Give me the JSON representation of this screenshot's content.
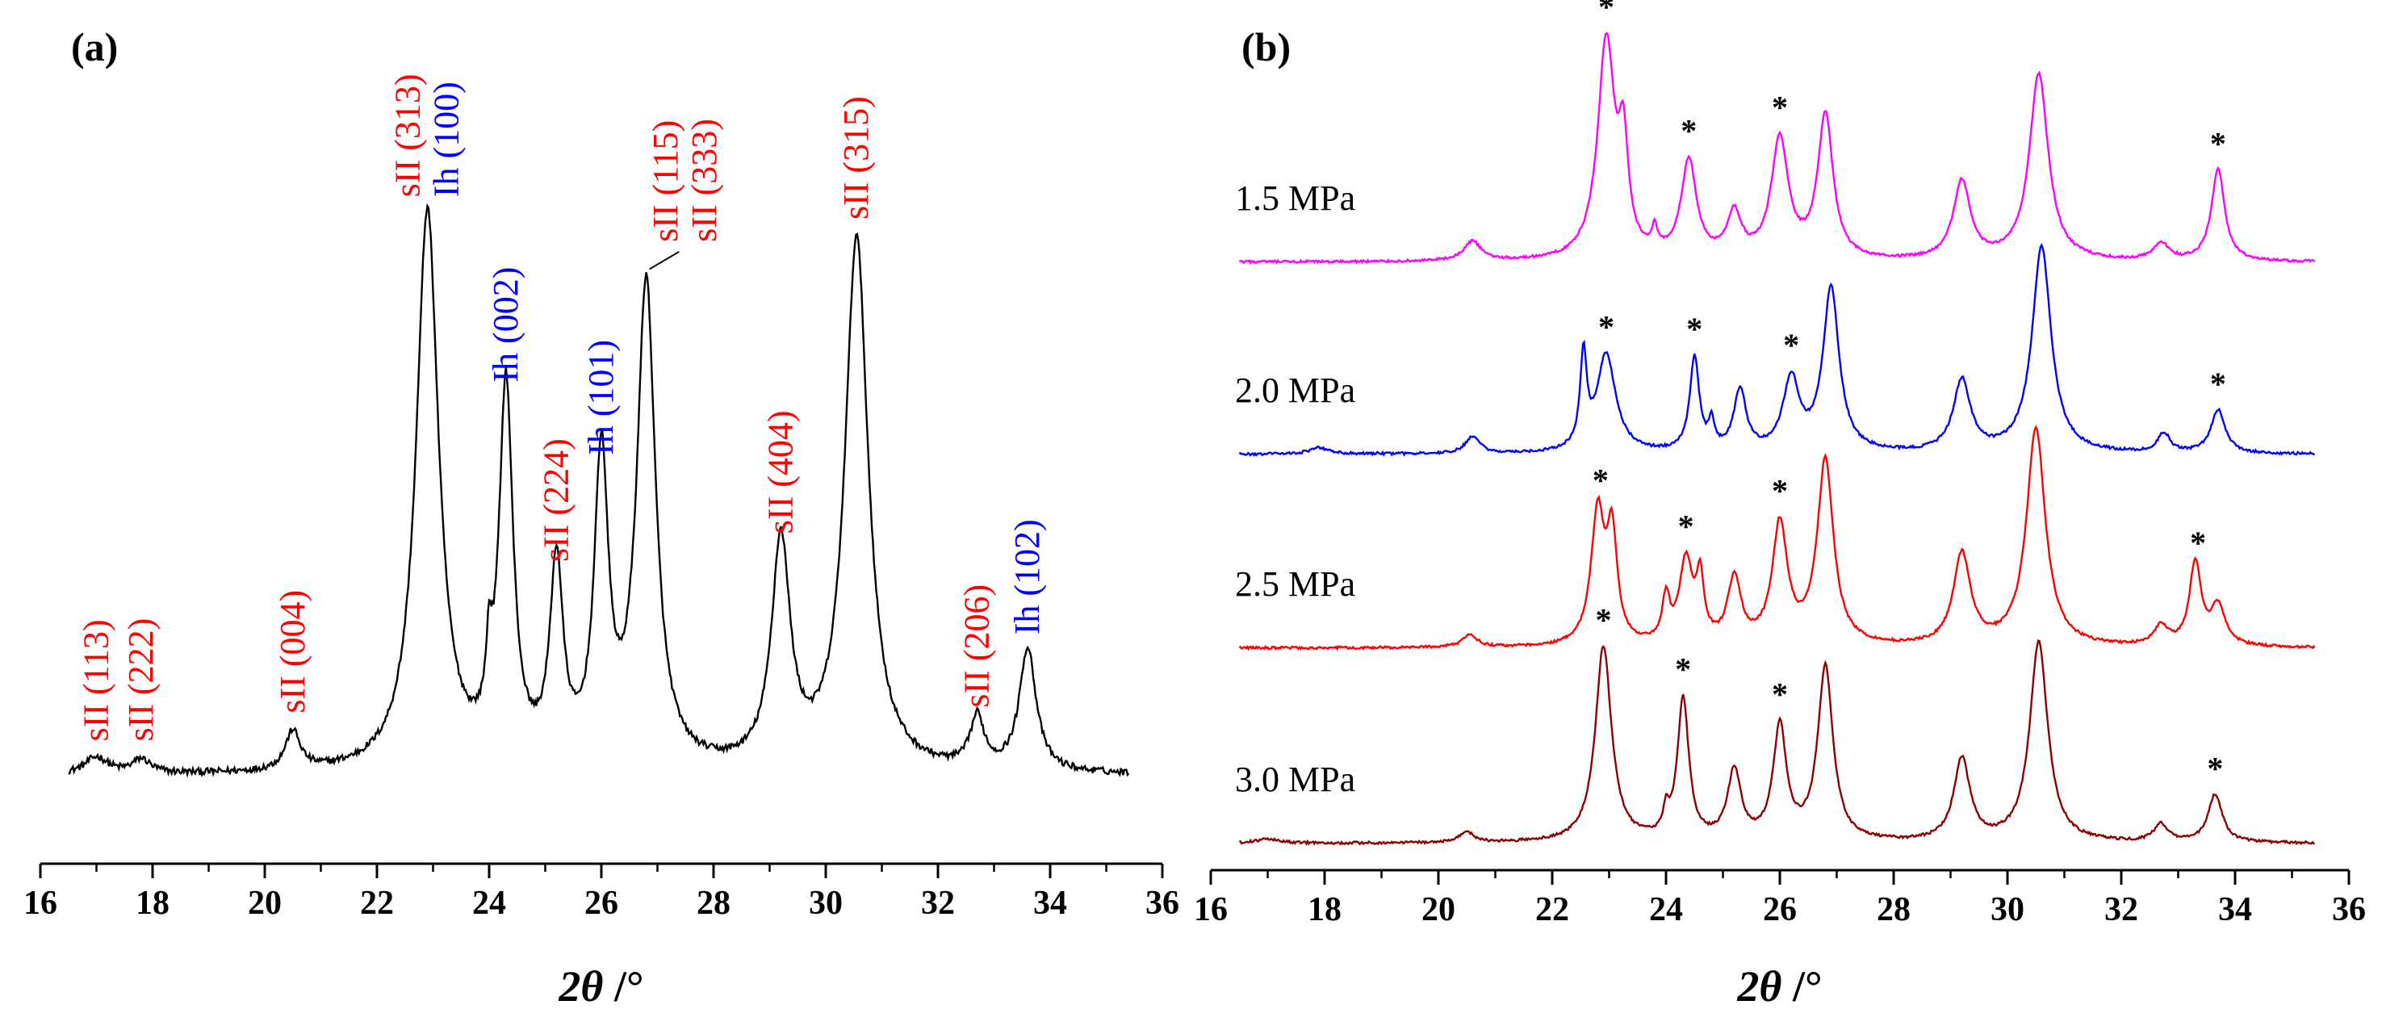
{
  "chart_data": [
    {
      "type": "line",
      "panel_label": "(a)",
      "title": "",
      "xlabel": "2θ /°",
      "xlabel_parts": {
        "symbol": "2θ",
        "unit": " /°"
      },
      "ylabel": "",
      "xlim": [
        16,
        36
      ],
      "ylim": [
        0,
        1.1
      ],
      "xticks": [
        16,
        18,
        20,
        22,
        24,
        26,
        28,
        30,
        32,
        34,
        36
      ],
      "baseline": 0.02,
      "peaks": [
        {
          "x": 17.0,
          "h": 0.03,
          "w": 0.25
        },
        {
          "x": 17.8,
          "h": 0.025,
          "w": 0.2
        },
        {
          "x": 20.5,
          "h": 0.07,
          "w": 0.16
        },
        {
          "x": 22.9,
          "h": 1.0,
          "w": 0.24
        },
        {
          "x": 24.0,
          "h": 0.12,
          "w": 0.06
        },
        {
          "x": 24.3,
          "h": 0.67,
          "w": 0.15
        },
        {
          "x": 25.2,
          "h": 0.35,
          "w": 0.14
        },
        {
          "x": 26.0,
          "h": 0.54,
          "w": 0.15
        },
        {
          "x": 26.8,
          "h": 0.86,
          "w": 0.2
        },
        {
          "x": 29.2,
          "h": 0.4,
          "w": 0.2
        },
        {
          "x": 30.55,
          "h": 0.95,
          "w": 0.25
        },
        {
          "x": 32.7,
          "h": 0.09,
          "w": 0.15
        },
        {
          "x": 33.6,
          "h": 0.22,
          "w": 0.18
        }
      ],
      "annotations": [
        {
          "lines": [
            {
              "text": "sII (113)",
              "color": "#ff0000"
            }
          ],
          "x": 17.0,
          "y": 0.07
        },
        {
          "lines": [
            {
              "text": "sII (222)",
              "color": "#ff0000"
            }
          ],
          "x": 17.8,
          "y": 0.07
        },
        {
          "lines": [
            {
              "text": "sII (004)",
              "color": "#ff0000"
            }
          ],
          "x": 20.5,
          "y": 0.12
        },
        {
          "lines": [
            {
              "text": "sII (313)",
              "color": "#ff0000"
            },
            {
              "text": "Ih (100)",
              "color": "#0000ff"
            }
          ],
          "x": 22.9,
          "y": 1.04
        },
        {
          "lines": [
            {
              "text": "Ih (002)",
              "color": "#0000ff"
            }
          ],
          "x": 24.3,
          "y": 0.71
        },
        {
          "lines": [
            {
              "text": "sII (224)",
              "color": "#ff0000"
            }
          ],
          "x": 25.2,
          "y": 0.39
        },
        {
          "lines": [
            {
              "text": "Ih (101)",
              "color": "#0000ff"
            }
          ],
          "x": 26.0,
          "y": 0.58
        },
        {
          "lines": [
            {
              "text": "sII (115)",
              "color": "#ff0000"
            },
            {
              "text": "sII (333)",
              "color": "#ff0000"
            }
          ],
          "x": 27.5,
          "y": 0.96,
          "leader_to_x": 26.8
        },
        {
          "lines": [
            {
              "text": "sII (404)",
              "color": "#ff0000"
            }
          ],
          "x": 29.2,
          "y": 0.44
        },
        {
          "lines": [
            {
              "text": "sII (315)",
              "color": "#ff0000"
            }
          ],
          "x": 30.55,
          "y": 1.0
        },
        {
          "lines": [
            {
              "text": "sII (206)",
              "color": "#ff0000"
            }
          ],
          "x": 32.7,
          "y": 0.13
        },
        {
          "lines": [
            {
              "text": "Ih (102)",
              "color": "#0000ff"
            }
          ],
          "x": 33.6,
          "y": 0.26
        }
      ]
    },
    {
      "type": "line",
      "panel_label": "(b)",
      "title": "",
      "xlabel": "2θ /°",
      "xlabel_parts": {
        "symbol": "2θ",
        "unit": " /°"
      },
      "ylabel": "",
      "xlim": [
        16,
        36
      ],
      "xticks": [
        16,
        18,
        20,
        22,
        24,
        26,
        28,
        30,
        32,
        34,
        36
      ],
      "series_height": 1.0,
      "series": [
        {
          "name": "1.5 MPa",
          "color": "#ff00ff",
          "baseline": 0.02,
          "peaks": [
            {
              "x": 20.6,
              "h": 0.09,
              "w": 0.18
            },
            {
              "x": 22.95,
              "h": 1.0,
              "w": 0.18
            },
            {
              "x": 23.25,
              "h": 0.45,
              "w": 0.1
            },
            {
              "x": 23.8,
              "h": 0.1,
              "w": 0.06
            },
            {
              "x": 24.4,
              "h": 0.45,
              "w": 0.16
            },
            {
              "x": 25.2,
              "h": 0.2,
              "w": 0.15
            },
            {
              "x": 26.0,
              "h": 0.55,
              "w": 0.18
            },
            {
              "x": 26.8,
              "h": 0.66,
              "w": 0.16
            },
            {
              "x": 29.2,
              "h": 0.36,
              "w": 0.18
            },
            {
              "x": 30.55,
              "h": 0.86,
              "w": 0.2
            },
            {
              "x": 32.7,
              "h": 0.08,
              "w": 0.16
            },
            {
              "x": 33.7,
              "h": 0.42,
              "w": 0.14
            }
          ],
          "asterisks": [
            22.95,
            24.4,
            26.0,
            33.7
          ]
        },
        {
          "name": "2.0 MPa",
          "color": "#0000ff",
          "baseline": 0.02,
          "peaks": [
            {
              "x": 17.9,
              "h": 0.03,
              "w": 0.2
            },
            {
              "x": 20.6,
              "h": 0.08,
              "w": 0.15
            },
            {
              "x": 22.55,
              "h": 0.42,
              "w": 0.07
            },
            {
              "x": 22.95,
              "h": 0.45,
              "w": 0.2
            },
            {
              "x": 24.5,
              "h": 0.43,
              "w": 0.1
            },
            {
              "x": 24.8,
              "h": 0.12,
              "w": 0.06
            },
            {
              "x": 25.3,
              "h": 0.28,
              "w": 0.13
            },
            {
              "x": 26.2,
              "h": 0.33,
              "w": 0.17
            },
            {
              "x": 26.9,
              "h": 0.75,
              "w": 0.17
            },
            {
              "x": 29.2,
              "h": 0.33,
              "w": 0.18
            },
            {
              "x": 30.6,
              "h": 0.95,
              "w": 0.2
            },
            {
              "x": 32.75,
              "h": 0.09,
              "w": 0.13
            },
            {
              "x": 33.7,
              "h": 0.2,
              "w": 0.15
            }
          ],
          "asterisks": [
            22.95,
            24.5,
            26.2,
            33.7
          ]
        },
        {
          "name": "2.5 MPa",
          "color": "#ff0000",
          "baseline": 0.02,
          "peaks": [
            {
              "x": 20.55,
              "h": 0.06,
              "w": 0.15
            },
            {
              "x": 22.8,
              "h": 0.6,
              "w": 0.14
            },
            {
              "x": 23.05,
              "h": 0.48,
              "w": 0.11
            },
            {
              "x": 24.0,
              "h": 0.2,
              "w": 0.08
            },
            {
              "x": 24.35,
              "h": 0.38,
              "w": 0.14
            },
            {
              "x": 24.6,
              "h": 0.28,
              "w": 0.08
            },
            {
              "x": 25.2,
              "h": 0.3,
              "w": 0.14
            },
            {
              "x": 26.0,
              "h": 0.55,
              "w": 0.16
            },
            {
              "x": 26.8,
              "h": 0.85,
              "w": 0.17
            },
            {
              "x": 29.2,
              "h": 0.42,
              "w": 0.18
            },
            {
              "x": 30.5,
              "h": 1.0,
              "w": 0.2
            },
            {
              "x": 32.7,
              "h": 0.09,
              "w": 0.15
            },
            {
              "x": 33.3,
              "h": 0.38,
              "w": 0.12
            },
            {
              "x": 33.7,
              "h": 0.18,
              "w": 0.16
            }
          ],
          "asterisks": [
            22.85,
            24.35,
            26.0,
            33.35
          ]
        },
        {
          "name": "3.0 MPa",
          "color": "#8b0000",
          "baseline": 0.02,
          "peaks": [
            {
              "x": 17.0,
              "h": 0.02,
              "w": 0.25
            },
            {
              "x": 20.5,
              "h": 0.05,
              "w": 0.15
            },
            {
              "x": 22.9,
              "h": 0.9,
              "w": 0.17
            },
            {
              "x": 24.0,
              "h": 0.1,
              "w": 0.06
            },
            {
              "x": 24.3,
              "h": 0.65,
              "w": 0.12
            },
            {
              "x": 25.2,
              "h": 0.32,
              "w": 0.14
            },
            {
              "x": 26.0,
              "h": 0.52,
              "w": 0.14
            },
            {
              "x": 26.8,
              "h": 0.8,
              "w": 0.16
            },
            {
              "x": 29.2,
              "h": 0.38,
              "w": 0.17
            },
            {
              "x": 30.55,
              "h": 0.92,
              "w": 0.19
            },
            {
              "x": 32.7,
              "h": 0.08,
              "w": 0.15
            },
            {
              "x": 33.65,
              "h": 0.22,
              "w": 0.15
            }
          ],
          "asterisks": [
            22.9,
            24.3,
            26.0,
            33.65
          ]
        }
      ],
      "asterisk_symbol": "*"
    }
  ]
}
